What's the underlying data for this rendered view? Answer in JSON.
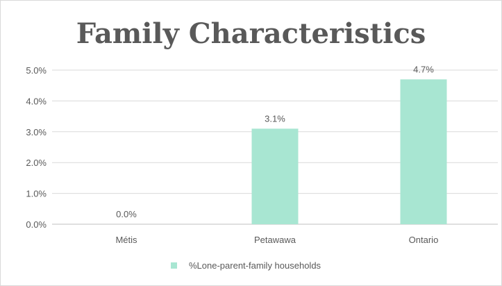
{
  "chart_data": {
    "type": "bar",
    "title": "Family Characteristics",
    "categories": [
      "Métis",
      "Petawawa",
      "Ontario"
    ],
    "series": [
      {
        "name": "%Lone-parent-family households",
        "values": [
          0.0,
          3.1,
          4.7
        ],
        "data_labels": [
          "0.0%",
          "3.1%",
          "4.7%"
        ],
        "color": "#a8e6d2"
      }
    ],
    "ylim": [
      0,
      5
    ],
    "y_ticks": [
      0,
      1,
      2,
      3,
      4,
      5
    ],
    "y_tick_labels": [
      "0.0%",
      "1.0%",
      "2.0%",
      "3.0%",
      "4.0%",
      "5.0%"
    ],
    "xlabel": "",
    "ylabel": "",
    "grid": true,
    "legend_position": "bottom"
  },
  "colors": {
    "gridline": "#d9d9d9",
    "axis": "#bfbfbf",
    "text": "#595959"
  }
}
